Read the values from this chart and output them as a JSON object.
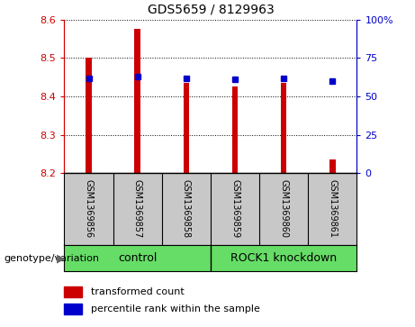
{
  "title": "GDS5659 / 8129963",
  "samples": [
    "GSM1369856",
    "GSM1369857",
    "GSM1369858",
    "GSM1369859",
    "GSM1369860",
    "GSM1369861"
  ],
  "transformed_counts": [
    8.5,
    8.575,
    8.435,
    8.425,
    8.435,
    8.235
  ],
  "percentile_ranks": [
    62,
    63,
    62,
    61,
    62,
    60
  ],
  "y_min": 8.2,
  "y_max": 8.6,
  "y_ticks": [
    8.2,
    8.3,
    8.4,
    8.5,
    8.6
  ],
  "y2_ticks": [
    0,
    25,
    50,
    75,
    100
  ],
  "bar_color": "#cc0000",
  "dot_color": "#0000cc",
  "bar_base": 8.2,
  "bar_width": 0.12,
  "group_labels": [
    "control",
    "ROCK1 knockdown"
  ],
  "group_label_prefix": "genotype/variation",
  "legend_red": "transformed count",
  "legend_blue": "percentile rank within the sample",
  "tick_label_area_color": "#c8c8c8",
  "group_area_color": "#66dd66",
  "plot_bg_color": "#ffffff",
  "left_spine_color": "#cc0000",
  "right_spine_color": "#0000cc"
}
